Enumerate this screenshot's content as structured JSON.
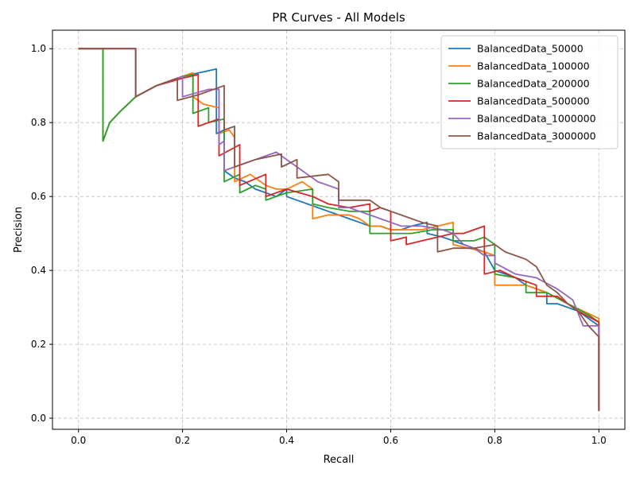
{
  "chart_data": {
    "type": "line",
    "title": "PR Curves - All Models",
    "xlabel": "Recall",
    "ylabel": "Precision",
    "xlim": [
      -0.05,
      1.05
    ],
    "ylim": [
      -0.03,
      1.05
    ],
    "xticks": [
      0.0,
      0.2,
      0.4,
      0.6,
      0.8,
      1.0
    ],
    "xtick_labels": [
      "0.0",
      "0.2",
      "0.4",
      "0.6",
      "0.8",
      "1.0"
    ],
    "yticks": [
      0.0,
      0.2,
      0.4,
      0.6,
      0.8,
      1.0
    ],
    "ytick_labels": [
      "0.0",
      "0.2",
      "0.4",
      "0.6",
      "0.8",
      "1.0"
    ],
    "grid": true,
    "legend_position": "top-right",
    "series": [
      {
        "name": "BalancedData_50000",
        "color": "#1f77b4",
        "x": [
          0.0,
          0.047,
          0.047,
          0.06,
          0.08,
          0.11,
          0.15,
          0.2,
          0.265,
          0.265,
          0.28,
          0.28,
          0.3,
          0.32,
          0.34,
          0.36,
          0.38,
          0.4,
          0.4,
          0.42,
          0.44,
          0.46,
          0.48,
          0.5,
          0.52,
          0.54,
          0.56,
          0.58,
          0.6,
          0.62,
          0.64,
          0.67,
          0.67,
          0.7,
          0.72,
          0.74,
          0.76,
          0.78,
          0.8,
          0.82,
          0.84,
          0.86,
          0.88,
          0.9,
          0.9,
          0.92,
          0.94,
          0.96,
          0.98,
          1.0,
          1.0
        ],
        "y": [
          1.0,
          1.0,
          0.75,
          0.8,
          0.83,
          0.87,
          0.9,
          0.925,
          0.945,
          0.77,
          0.78,
          0.67,
          0.65,
          0.64,
          0.62,
          0.61,
          0.6,
          0.62,
          0.6,
          0.59,
          0.58,
          0.57,
          0.56,
          0.55,
          0.54,
          0.53,
          0.52,
          0.52,
          0.51,
          0.51,
          0.52,
          0.53,
          0.5,
          0.49,
          0.48,
          0.47,
          0.46,
          0.45,
          0.4,
          0.39,
          0.38,
          0.36,
          0.35,
          0.34,
          0.31,
          0.31,
          0.3,
          0.29,
          0.27,
          0.25,
          0.02
        ]
      },
      {
        "name": "BalancedData_100000",
        "color": "#ff7f0e",
        "x": [
          0.0,
          0.047,
          0.047,
          0.06,
          0.08,
          0.11,
          0.15,
          0.2,
          0.22,
          0.22,
          0.24,
          0.27,
          0.27,
          0.29,
          0.3,
          0.3,
          0.33,
          0.36,
          0.38,
          0.4,
          0.43,
          0.45,
          0.45,
          0.48,
          0.5,
          0.52,
          0.54,
          0.56,
          0.58,
          0.6,
          0.63,
          0.66,
          0.69,
          0.72,
          0.72,
          0.75,
          0.78,
          0.8,
          0.8,
          0.83,
          0.86,
          0.9,
          0.94,
          0.97,
          1.0,
          1.0
        ],
        "y": [
          1.0,
          1.0,
          0.75,
          0.8,
          0.83,
          0.87,
          0.9,
          0.925,
          0.935,
          0.87,
          0.85,
          0.84,
          0.77,
          0.78,
          0.76,
          0.64,
          0.66,
          0.63,
          0.62,
          0.62,
          0.64,
          0.62,
          0.54,
          0.55,
          0.55,
          0.55,
          0.54,
          0.52,
          0.52,
          0.51,
          0.51,
          0.51,
          0.52,
          0.53,
          0.47,
          0.46,
          0.45,
          0.44,
          0.36,
          0.36,
          0.36,
          0.34,
          0.31,
          0.29,
          0.27,
          0.02
        ]
      },
      {
        "name": "BalancedData_200000",
        "color": "#2ca02c",
        "x": [
          0.0,
          0.047,
          0.047,
          0.06,
          0.08,
          0.11,
          0.15,
          0.2,
          0.22,
          0.22,
          0.25,
          0.25,
          0.28,
          0.28,
          0.31,
          0.31,
          0.34,
          0.36,
          0.36,
          0.4,
          0.45,
          0.45,
          0.48,
          0.52,
          0.56,
          0.56,
          0.6,
          0.64,
          0.68,
          0.72,
          0.72,
          0.76,
          0.78,
          0.8,
          0.8,
          0.84,
          0.86,
          0.86,
          0.9,
          0.94,
          0.98,
          1.0,
          1.0
        ],
        "y": [
          1.0,
          1.0,
          0.75,
          0.8,
          0.83,
          0.87,
          0.9,
          0.925,
          0.93,
          0.825,
          0.84,
          0.8,
          0.81,
          0.64,
          0.66,
          0.61,
          0.63,
          0.62,
          0.59,
          0.61,
          0.62,
          0.58,
          0.57,
          0.56,
          0.56,
          0.5,
          0.5,
          0.5,
          0.51,
          0.51,
          0.48,
          0.48,
          0.49,
          0.47,
          0.39,
          0.38,
          0.37,
          0.34,
          0.34,
          0.31,
          0.28,
          0.26,
          0.02
        ]
      },
      {
        "name": "BalancedData_500000",
        "color": "#d62728",
        "x": [
          0.0,
          0.11,
          0.11,
          0.15,
          0.2,
          0.23,
          0.23,
          0.25,
          0.27,
          0.27,
          0.31,
          0.31,
          0.36,
          0.36,
          0.4,
          0.45,
          0.48,
          0.52,
          0.56,
          0.56,
          0.58,
          0.6,
          0.6,
          0.63,
          0.63,
          0.66,
          0.69,
          0.72,
          0.74,
          0.76,
          0.78,
          0.78,
          0.81,
          0.84,
          0.88,
          0.88,
          0.92,
          0.96,
          1.0,
          1.0
        ],
        "y": [
          1.0,
          1.0,
          0.87,
          0.9,
          0.92,
          0.93,
          0.79,
          0.8,
          0.81,
          0.71,
          0.74,
          0.63,
          0.66,
          0.6,
          0.62,
          0.6,
          0.58,
          0.57,
          0.58,
          0.56,
          0.57,
          0.56,
          0.48,
          0.49,
          0.47,
          0.48,
          0.49,
          0.5,
          0.5,
          0.51,
          0.52,
          0.39,
          0.4,
          0.38,
          0.36,
          0.33,
          0.33,
          0.29,
          0.26,
          0.02
        ]
      },
      {
        "name": "BalancedData_1000000",
        "color": "#9467bd",
        "x": [
          0.0,
          0.11,
          0.11,
          0.15,
          0.2,
          0.2,
          0.25,
          0.27,
          0.27,
          0.28,
          0.28,
          0.34,
          0.38,
          0.4,
          0.44,
          0.46,
          0.48,
          0.5,
          0.5,
          0.52,
          0.54,
          0.56,
          0.58,
          0.6,
          0.62,
          0.66,
          0.7,
          0.72,
          0.74,
          0.76,
          0.78,
          0.8,
          0.8,
          0.84,
          0.88,
          0.92,
          0.95,
          0.97,
          1.0,
          1.0
        ],
        "y": [
          1.0,
          1.0,
          0.87,
          0.9,
          0.925,
          0.87,
          0.89,
          0.89,
          0.74,
          0.75,
          0.67,
          0.7,
          0.72,
          0.7,
          0.66,
          0.64,
          0.63,
          0.62,
          0.57,
          0.57,
          0.56,
          0.55,
          0.54,
          0.53,
          0.52,
          0.52,
          0.51,
          0.5,
          0.47,
          0.46,
          0.44,
          0.44,
          0.42,
          0.39,
          0.38,
          0.35,
          0.32,
          0.25,
          0.25,
          0.02
        ]
      },
      {
        "name": "BalancedData_3000000",
        "color": "#8c564b",
        "x": [
          0.0,
          0.11,
          0.11,
          0.15,
          0.19,
          0.19,
          0.23,
          0.28,
          0.28,
          0.3,
          0.3,
          0.34,
          0.39,
          0.39,
          0.42,
          0.42,
          0.48,
          0.5,
          0.5,
          0.54,
          0.56,
          0.58,
          0.6,
          0.62,
          0.66,
          0.69,
          0.69,
          0.72,
          0.76,
          0.8,
          0.82,
          0.84,
          0.86,
          0.88,
          0.9,
          0.92,
          0.94,
          0.96,
          0.98,
          1.0,
          1.0
        ],
        "y": [
          1.0,
          1.0,
          0.87,
          0.9,
          0.92,
          0.86,
          0.875,
          0.9,
          0.78,
          0.79,
          0.68,
          0.7,
          0.715,
          0.68,
          0.7,
          0.65,
          0.66,
          0.64,
          0.59,
          0.59,
          0.59,
          0.57,
          0.56,
          0.55,
          0.53,
          0.52,
          0.45,
          0.46,
          0.46,
          0.47,
          0.45,
          0.44,
          0.43,
          0.41,
          0.36,
          0.34,
          0.31,
          0.29,
          0.25,
          0.22,
          0.02
        ]
      }
    ]
  }
}
